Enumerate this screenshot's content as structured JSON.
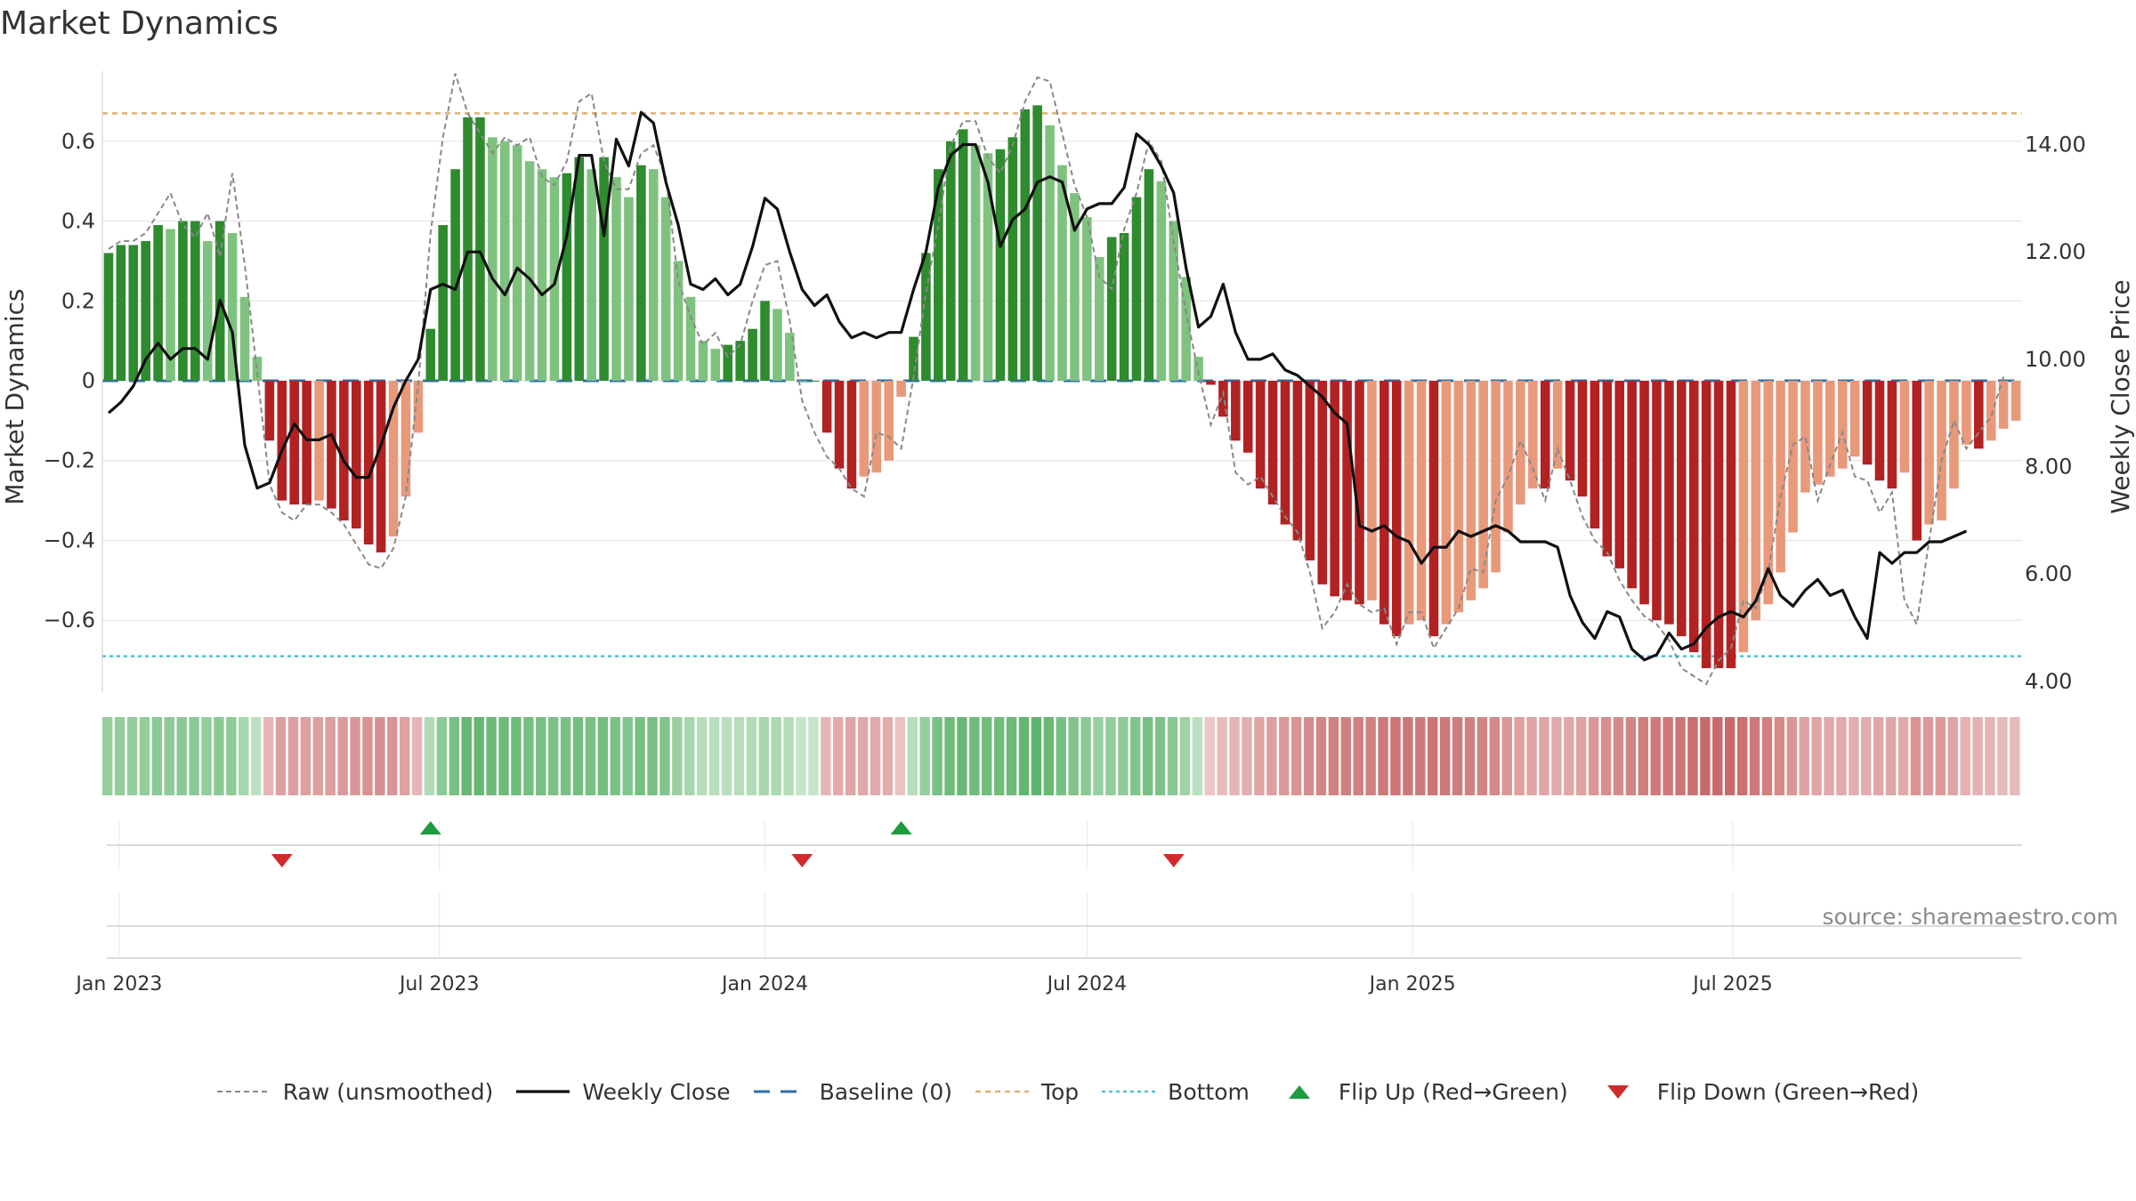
{
  "chart_data": {
    "type": "bar",
    "title": "Market Dynamics",
    "ylabel_left": "Market Dynamics",
    "ylabel_right": "Weekly Close Price",
    "ylim_left": [
      -0.78,
      0.78
    ],
    "ylim_right": [
      3.8,
      15.4
    ],
    "left_ticks": [
      -0.6,
      -0.4,
      -0.2,
      0,
      0.2,
      0.4,
      0.6
    ],
    "left_tick_labels": [
      "−0.6",
      "−0.4",
      "−0.2",
      "0",
      "0.2",
      "0.4",
      "0.6"
    ],
    "right_ticks": [
      4,
      6,
      8,
      10,
      12,
      14
    ],
    "right_tick_labels": [
      "4.00",
      "6.00",
      "8.00",
      "10.00",
      "12.00",
      "14.00"
    ],
    "x_tick_labels": [
      "Jan 2023",
      "Jul 2023",
      "Jan 2024",
      "Jul 2024",
      "Jan 2025",
      "Jul 2025"
    ],
    "x_tick_dates": [
      "2023-01-01",
      "2023-07-01",
      "2024-01-01",
      "2024-07-01",
      "2025-01-01",
      "2025-07-01"
    ],
    "first_week": "2022-12-26",
    "top_level": 0.67,
    "bottom_level": -0.69,
    "baseline": 0,
    "grid": true,
    "legend_position": "bottom",
    "source_text": "source: sharemaestro.com",
    "colors": {
      "strong_green": "#2e8b2e",
      "light_green": "#7fc27f",
      "strong_red": "#b22222",
      "light_red": "#e8997a",
      "weekly_close": "#111111",
      "raw": "#888888",
      "baseline": "#2c6fa8",
      "top": "#e0b070",
      "bottom": "#4cc3d4",
      "flip_up": "#1e9b3e",
      "flip_down": "#d22a2a",
      "band_green_dark": "#5cb36a",
      "band_green_light": "#c5e5c8",
      "band_red_dark": "#c96a6a",
      "band_red_light": "#ecc7c7"
    },
    "series": [
      {
        "name": "Market Dynamics",
        "values": [
          0.32,
          0.34,
          0.34,
          0.35,
          0.39,
          0.38,
          0.4,
          0.4,
          0.35,
          0.4,
          0.37,
          0.21,
          0.06,
          -0.15,
          -0.3,
          -0.31,
          -0.31,
          -0.3,
          -0.32,
          -0.35,
          -0.37,
          -0.41,
          -0.43,
          -0.39,
          -0.29,
          -0.13,
          0.13,
          0.39,
          0.53,
          0.66,
          0.66,
          0.61,
          0.6,
          0.59,
          0.55,
          0.53,
          0.51,
          0.52,
          0.56,
          0.53,
          0.56,
          0.51,
          0.46,
          0.54,
          0.53,
          0.46,
          0.3,
          0.21,
          0.1,
          0.08,
          0.09,
          0.1,
          0.13,
          0.2,
          0.18,
          0.12,
          0.0,
          0.0,
          -0.13,
          -0.22,
          -0.27,
          -0.24,
          -0.23,
          -0.2,
          -0.04,
          0.11,
          0.32,
          0.53,
          0.6,
          0.63,
          0.59,
          0.57,
          0.58,
          0.61,
          0.68,
          0.69,
          0.64,
          0.54,
          0.47,
          0.41,
          0.31,
          0.36,
          0.37,
          0.46,
          0.53,
          0.5,
          0.4,
          0.26,
          0.06,
          -0.01,
          -0.09,
          -0.15,
          -0.18,
          -0.27,
          -0.31,
          -0.36,
          -0.4,
          -0.45,
          -0.51,
          -0.54,
          -0.55,
          -0.56,
          -0.55,
          -0.61,
          -0.64,
          -0.61,
          -0.6,
          -0.64,
          -0.61,
          -0.58,
          -0.55,
          -0.52,
          -0.48,
          -0.38,
          -0.31,
          -0.27,
          -0.27,
          -0.22,
          -0.25,
          -0.29,
          -0.37,
          -0.44,
          -0.47,
          -0.52,
          -0.56,
          -0.6,
          -0.61,
          -0.64,
          -0.68,
          -0.72,
          -0.72,
          -0.72,
          -0.68,
          -0.6,
          -0.56,
          -0.48,
          -0.38,
          -0.28,
          -0.26,
          -0.24,
          -0.22,
          -0.19,
          -0.21,
          -0.25,
          -0.27,
          -0.23,
          -0.4,
          -0.36,
          -0.35,
          -0.27,
          -0.16,
          -0.17,
          -0.15,
          -0.12,
          -0.1
        ]
      },
      {
        "name": "Raw (unsmoothed)",
        "values": [
          0.33,
          0.35,
          0.35,
          0.37,
          0.42,
          0.47,
          0.39,
          0.36,
          0.42,
          0.31,
          0.52,
          0.29,
          0.02,
          -0.26,
          -0.33,
          -0.35,
          -0.31,
          -0.31,
          -0.33,
          -0.36,
          -0.41,
          -0.46,
          -0.47,
          -0.42,
          -0.29,
          -0.01,
          0.37,
          0.61,
          0.77,
          0.67,
          0.62,
          0.57,
          0.61,
          0.59,
          0.61,
          0.51,
          0.49,
          0.55,
          0.7,
          0.72,
          0.55,
          0.48,
          0.48,
          0.57,
          0.59,
          0.51,
          0.25,
          0.16,
          0.09,
          0.12,
          0.06,
          0.09,
          0.2,
          0.29,
          0.3,
          0.15,
          -0.05,
          -0.13,
          -0.19,
          -0.22,
          -0.27,
          -0.29,
          -0.13,
          -0.14,
          -0.17,
          0.01,
          0.22,
          0.39,
          0.59,
          0.65,
          0.65,
          0.56,
          0.52,
          0.59,
          0.7,
          0.76,
          0.75,
          0.62,
          0.49,
          0.41,
          0.26,
          0.23,
          0.38,
          0.47,
          0.6,
          0.55,
          0.35,
          0.17,
          0.02,
          -0.11,
          -0.03,
          -0.23,
          -0.26,
          -0.24,
          -0.29,
          -0.34,
          -0.38,
          -0.48,
          -0.62,
          -0.58,
          -0.51,
          -0.56,
          -0.58,
          -0.57,
          -0.66,
          -0.58,
          -0.58,
          -0.67,
          -0.62,
          -0.57,
          -0.47,
          -0.48,
          -0.3,
          -0.24,
          -0.15,
          -0.22,
          -0.3,
          -0.17,
          -0.25,
          -0.34,
          -0.4,
          -0.43,
          -0.5,
          -0.55,
          -0.59,
          -0.61,
          -0.65,
          -0.72,
          -0.74,
          -0.76,
          -0.7,
          -0.67,
          -0.55,
          -0.57,
          -0.48,
          -0.29,
          -0.16,
          -0.14,
          -0.3,
          -0.21,
          -0.13,
          -0.24,
          -0.25,
          -0.33,
          -0.28,
          -0.55,
          -0.61,
          -0.4,
          -0.2,
          -0.1,
          -0.17,
          -0.13,
          -0.09,
          0.01
        ]
      },
      {
        "name": "Weekly Close",
        "values": [
          9.0,
          9.2,
          9.5,
          10.0,
          10.3,
          10.0,
          10.2,
          10.2,
          10.0,
          11.1,
          10.5,
          8.4,
          7.6,
          7.7,
          8.3,
          8.8,
          8.5,
          8.5,
          8.6,
          8.1,
          7.8,
          7.8,
          8.4,
          9.1,
          9.6,
          10.0,
          11.3,
          11.4,
          11.3,
          12.0,
          12.0,
          11.5,
          11.2,
          11.7,
          11.5,
          11.2,
          11.4,
          12.3,
          13.8,
          13.8,
          12.3,
          14.1,
          13.6,
          14.6,
          14.4,
          13.3,
          12.5,
          11.4,
          11.3,
          11.5,
          11.2,
          11.4,
          12.1,
          13.0,
          12.8,
          12.0,
          11.3,
          11.0,
          11.2,
          10.7,
          10.4,
          10.5,
          10.4,
          10.5,
          10.5,
          11.3,
          12.0,
          13.2,
          13.8,
          14.0,
          14.0,
          13.3,
          12.1,
          12.6,
          12.8,
          13.3,
          13.4,
          13.3,
          12.4,
          12.8,
          12.9,
          12.9,
          13.2,
          14.2,
          14.0,
          13.6,
          13.1,
          11.7,
          10.6,
          10.8,
          11.4,
          10.5,
          10.0,
          10.0,
          10.1,
          9.8,
          9.7,
          9.5,
          9.3,
          9.0,
          8.8,
          6.9,
          6.8,
          6.9,
          6.7,
          6.6,
          6.2,
          6.5,
          6.5,
          6.8,
          6.7,
          6.8,
          6.9,
          6.8,
          6.6,
          6.6,
          6.6,
          6.5,
          5.6,
          5.1,
          4.8,
          5.3,
          5.2,
          4.6,
          4.4,
          4.5,
          4.9,
          4.6,
          4.7,
          5.0,
          5.2,
          5.3,
          5.2,
          5.5,
          6.1,
          5.6,
          5.4,
          5.7,
          5.9,
          5.6,
          5.7,
          5.2,
          4.8,
          6.4,
          6.2,
          6.4,
          6.4,
          6.6,
          6.6,
          6.7,
          6.8
        ]
      }
    ],
    "flips": [
      {
        "type": "down",
        "date": "2023-04-03"
      },
      {
        "type": "up",
        "date": "2023-06-26"
      },
      {
        "type": "down",
        "date": "2024-01-22"
      },
      {
        "type": "up",
        "date": "2024-03-18"
      },
      {
        "type": "down",
        "date": "2024-08-19"
      }
    ],
    "legend": [
      {
        "key": "raw",
        "label": "Raw (unsmoothed)"
      },
      {
        "key": "close",
        "label": "Weekly Close"
      },
      {
        "key": "baseline",
        "label": "Baseline (0)"
      },
      {
        "key": "top",
        "label": "Top"
      },
      {
        "key": "bottom",
        "label": "Bottom"
      },
      {
        "key": "flip_up",
        "label": "Flip Up (Red→Green)"
      },
      {
        "key": "flip_down",
        "label": "Flip Down (Green→Red)"
      }
    ]
  }
}
